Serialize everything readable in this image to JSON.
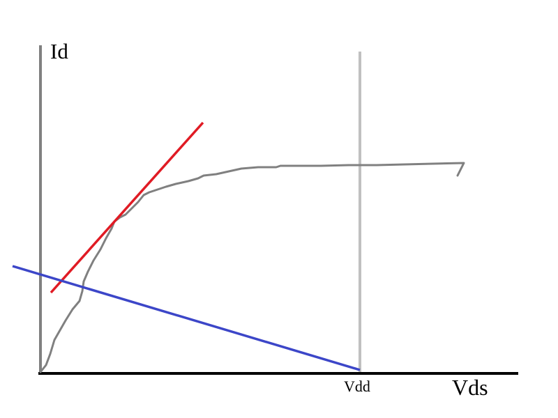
{
  "labels": {
    "y_axis": "Id",
    "x_axis": "Vds",
    "vdd_marker": "Vdd"
  },
  "colors": {
    "y_axis": "#808080",
    "x_axis": "#000000",
    "vdd_line": "#c0c0c0",
    "iv_curve": "#808080",
    "tangent_line": "#e01b24",
    "load_line": "#3c46c8",
    "background": "#ffffff"
  }
}
